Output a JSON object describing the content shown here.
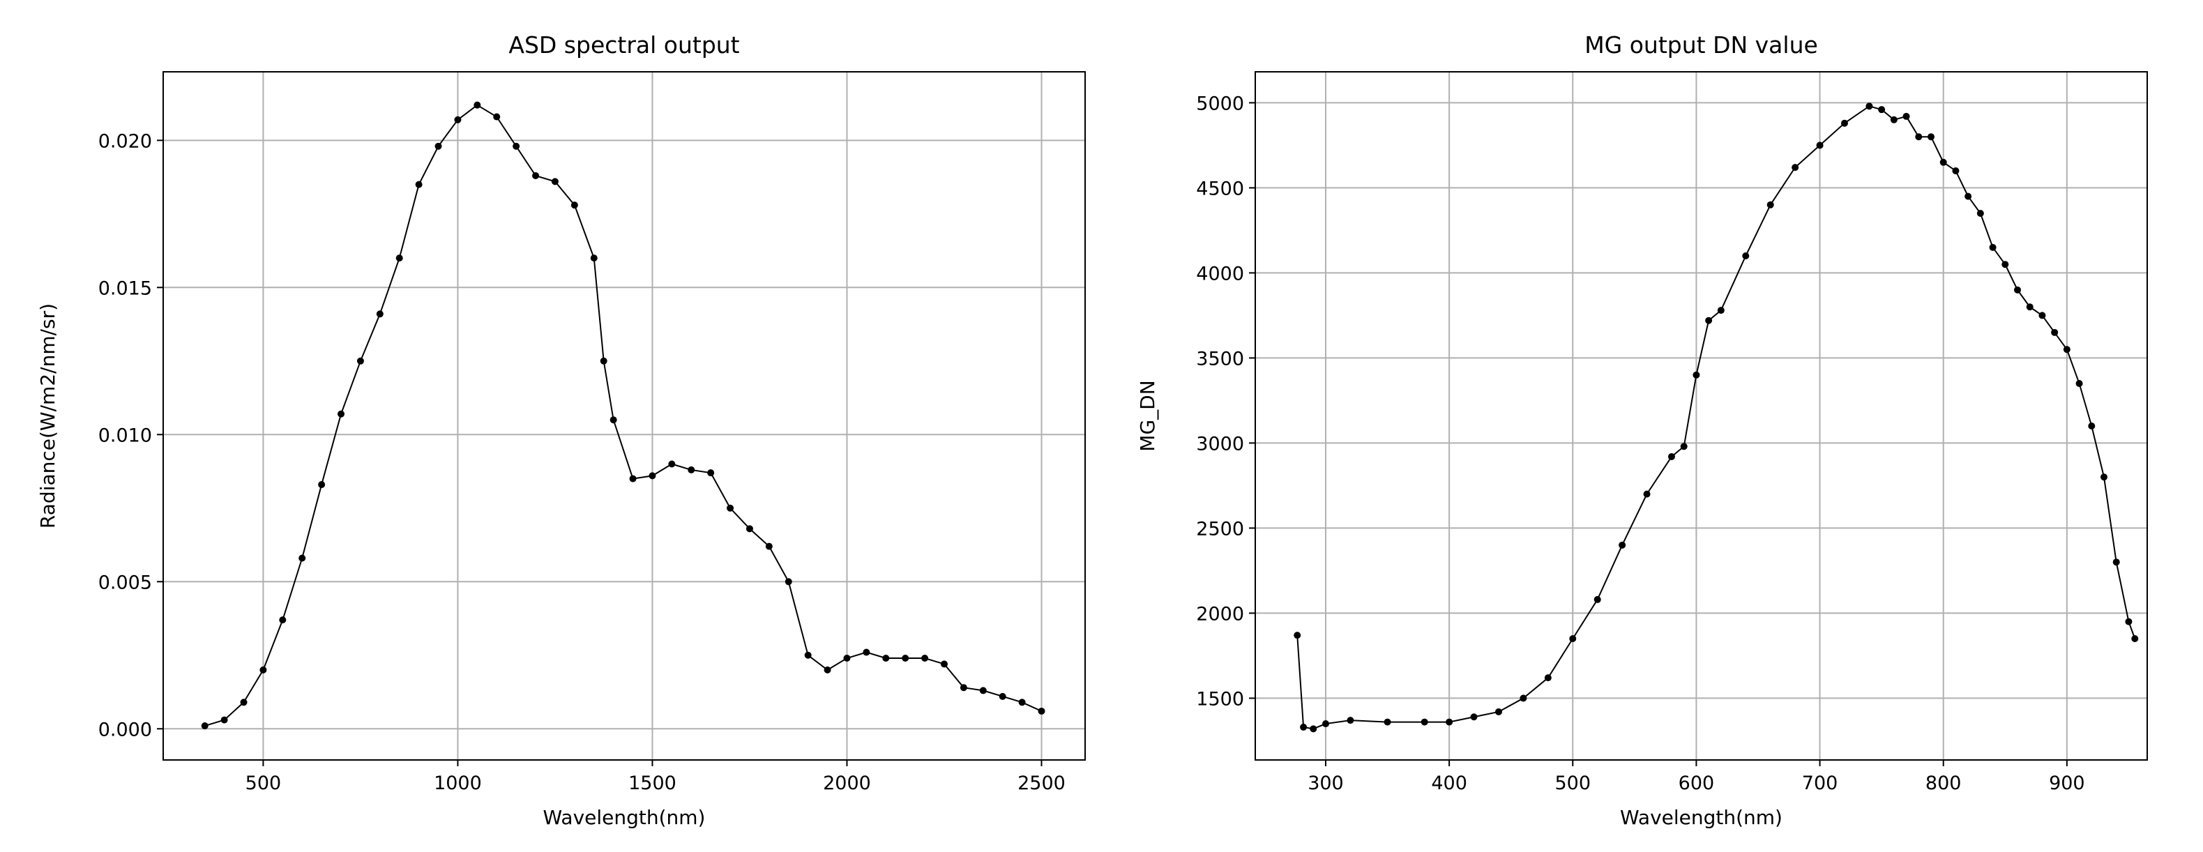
{
  "chart_data": [
    {
      "type": "line",
      "title": "ASD spectral output",
      "x_label": "Wavelength(nm)",
      "y_label": "Radiance(W/m2/nm/sr)",
      "x": [
        350,
        400,
        450,
        500,
        550,
        600,
        650,
        700,
        750,
        800,
        850,
        900,
        950,
        1000,
        1050,
        1100,
        1150,
        1200,
        1250,
        1300,
        1350,
        1375,
        1400,
        1450,
        1500,
        1550,
        1600,
        1650,
        1700,
        1750,
        1800,
        1850,
        1900,
        1950,
        2000,
        2050,
        2100,
        2150,
        2200,
        2250,
        2300,
        2350,
        2400,
        2450,
        2500
      ],
      "values": [
        0.0001,
        0.0003,
        0.0009,
        0.002,
        0.0037,
        0.0058,
        0.0083,
        0.0107,
        0.0125,
        0.0141,
        0.016,
        0.0185,
        0.0198,
        0.0207,
        0.0212,
        0.0208,
        0.0198,
        0.0188,
        0.0186,
        0.0178,
        0.016,
        0.0125,
        0.0105,
        0.0085,
        0.0086,
        0.009,
        0.0088,
        0.0087,
        0.0075,
        0.0068,
        0.0062,
        0.005,
        0.0025,
        0.002,
        0.0024,
        0.0026,
        0.0024,
        0.0024,
        0.0024,
        0.0022,
        0.0014,
        0.0013,
        0.0011,
        0.0009,
        0.0006
      ],
      "color": "#000000",
      "xlim": [
        243,
        2612
      ],
      "xticks": [
        500,
        1000,
        1500,
        2000,
        2500
      ],
      "ylim": [
        -0.00106,
        0.02233
      ],
      "yticks": [
        {
          "value": 0,
          "label": "0.000"
        },
        {
          "value": 0.005,
          "label": "0.005"
        },
        {
          "value": 0.01,
          "label": "0.010"
        },
        {
          "value": 0.015,
          "label": "0.015"
        },
        {
          "value": 0.02,
          "label": "0.020"
        }
      ],
      "grid": true
    },
    {
      "type": "line",
      "title": "MG output DN value",
      "x_label": "Wavelength(nm)",
      "y_label": "MG_DN",
      "x": [
        277,
        282,
        290,
        300,
        320,
        350,
        380,
        400,
        420,
        440,
        460,
        480,
        500,
        520,
        540,
        560,
        580,
        590,
        600,
        610,
        620,
        640,
        660,
        680,
        700,
        720,
        740,
        750,
        760,
        770,
        780,
        790,
        800,
        810,
        820,
        830,
        840,
        850,
        860,
        870,
        880,
        890,
        900,
        910,
        920,
        930,
        940,
        950,
        955
      ],
      "values": [
        1870,
        1330,
        1320,
        1350,
        1370,
        1360,
        1360,
        1360,
        1390,
        1420,
        1500,
        1620,
        1850,
        2080,
        2400,
        2700,
        2920,
        2980,
        3400,
        3720,
        3780,
        4100,
        4400,
        4620,
        4750,
        4880,
        4980,
        4960,
        4900,
        4920,
        4800,
        4800,
        4650,
        4600,
        4450,
        4350,
        4150,
        4050,
        3900,
        3800,
        3750,
        3650,
        3550,
        3350,
        3100,
        2800,
        2300,
        1950,
        1850
      ],
      "color": "#000000",
      "xlim": [
        243,
        965
      ],
      "xticks": [
        300,
        400,
        500,
        600,
        700,
        800,
        900
      ],
      "ylim": [
        1137,
        5182
      ],
      "yticks": [
        1500,
        2000,
        2500,
        3000,
        3500,
        4000,
        4500,
        5000
      ],
      "grid": true
    }
  ]
}
